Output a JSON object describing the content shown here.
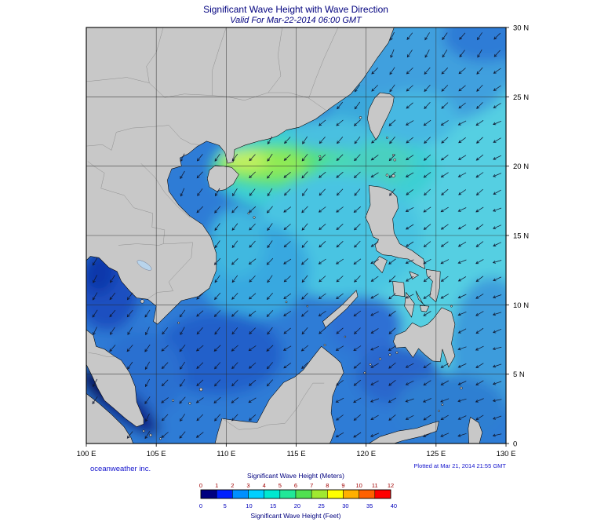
{
  "header": {
    "title": "Significant Wave Height with Wave Direction",
    "subtitle": "Valid For Mar-22-2014 06:00 GMT",
    "title_color": "#00007f"
  },
  "axes": {
    "x_ticks": [
      "100 E",
      "105 E",
      "110 E",
      "115 E",
      "120 E",
      "125 E",
      "130 E"
    ],
    "y_ticks": [
      "30 N",
      "25 N",
      "20 N",
      "15 N",
      "10 N",
      "5 N",
      "0"
    ],
    "lon_range": [
      100,
      130
    ],
    "lat_range": [
      0,
      30
    ]
  },
  "credits": {
    "left": "oceanweather inc.",
    "right": "Plotted at Mar 21, 2014 21:55 GMT",
    "color": "#1414cd"
  },
  "legend": {
    "meters_label": "Significant Wave Height (Meters)",
    "meters_ticks": [
      "0",
      "1",
      "2",
      "3",
      "4",
      "5",
      "6",
      "7",
      "8",
      "9",
      "10",
      "11",
      "12"
    ],
    "feet_ticks": [
      "0",
      "5",
      "10",
      "15",
      "20",
      "25",
      "30",
      "35",
      "40"
    ],
    "feet_label": "Significant Wave Height (Feet)",
    "meters_tick_color": "#a00000",
    "feet_tick_color": "#0000bb",
    "label_color": "#00007f",
    "colors": [
      "#000080",
      "#0020ff",
      "#0090ff",
      "#00d0ff",
      "#00e8d0",
      "#20e898",
      "#50e050",
      "#a0e830",
      "#ffff00",
      "#ffb000",
      "#ff6000",
      "#ff0000"
    ]
  },
  "map": {
    "land_color": "#c8c8c8",
    "coast_color": "#000000",
    "border_color": "#8f8f8f",
    "grid_color": "#2a2a2a",
    "arrow_color": "#101830",
    "sea_base_color": "#2d7bd6",
    "gulf_dark_color": "#1b4fc0",
    "strait_darkest_color": "#071263",
    "wave_band_green": "#55e07a",
    "pacific_cyan": "#55cfe2"
  }
}
